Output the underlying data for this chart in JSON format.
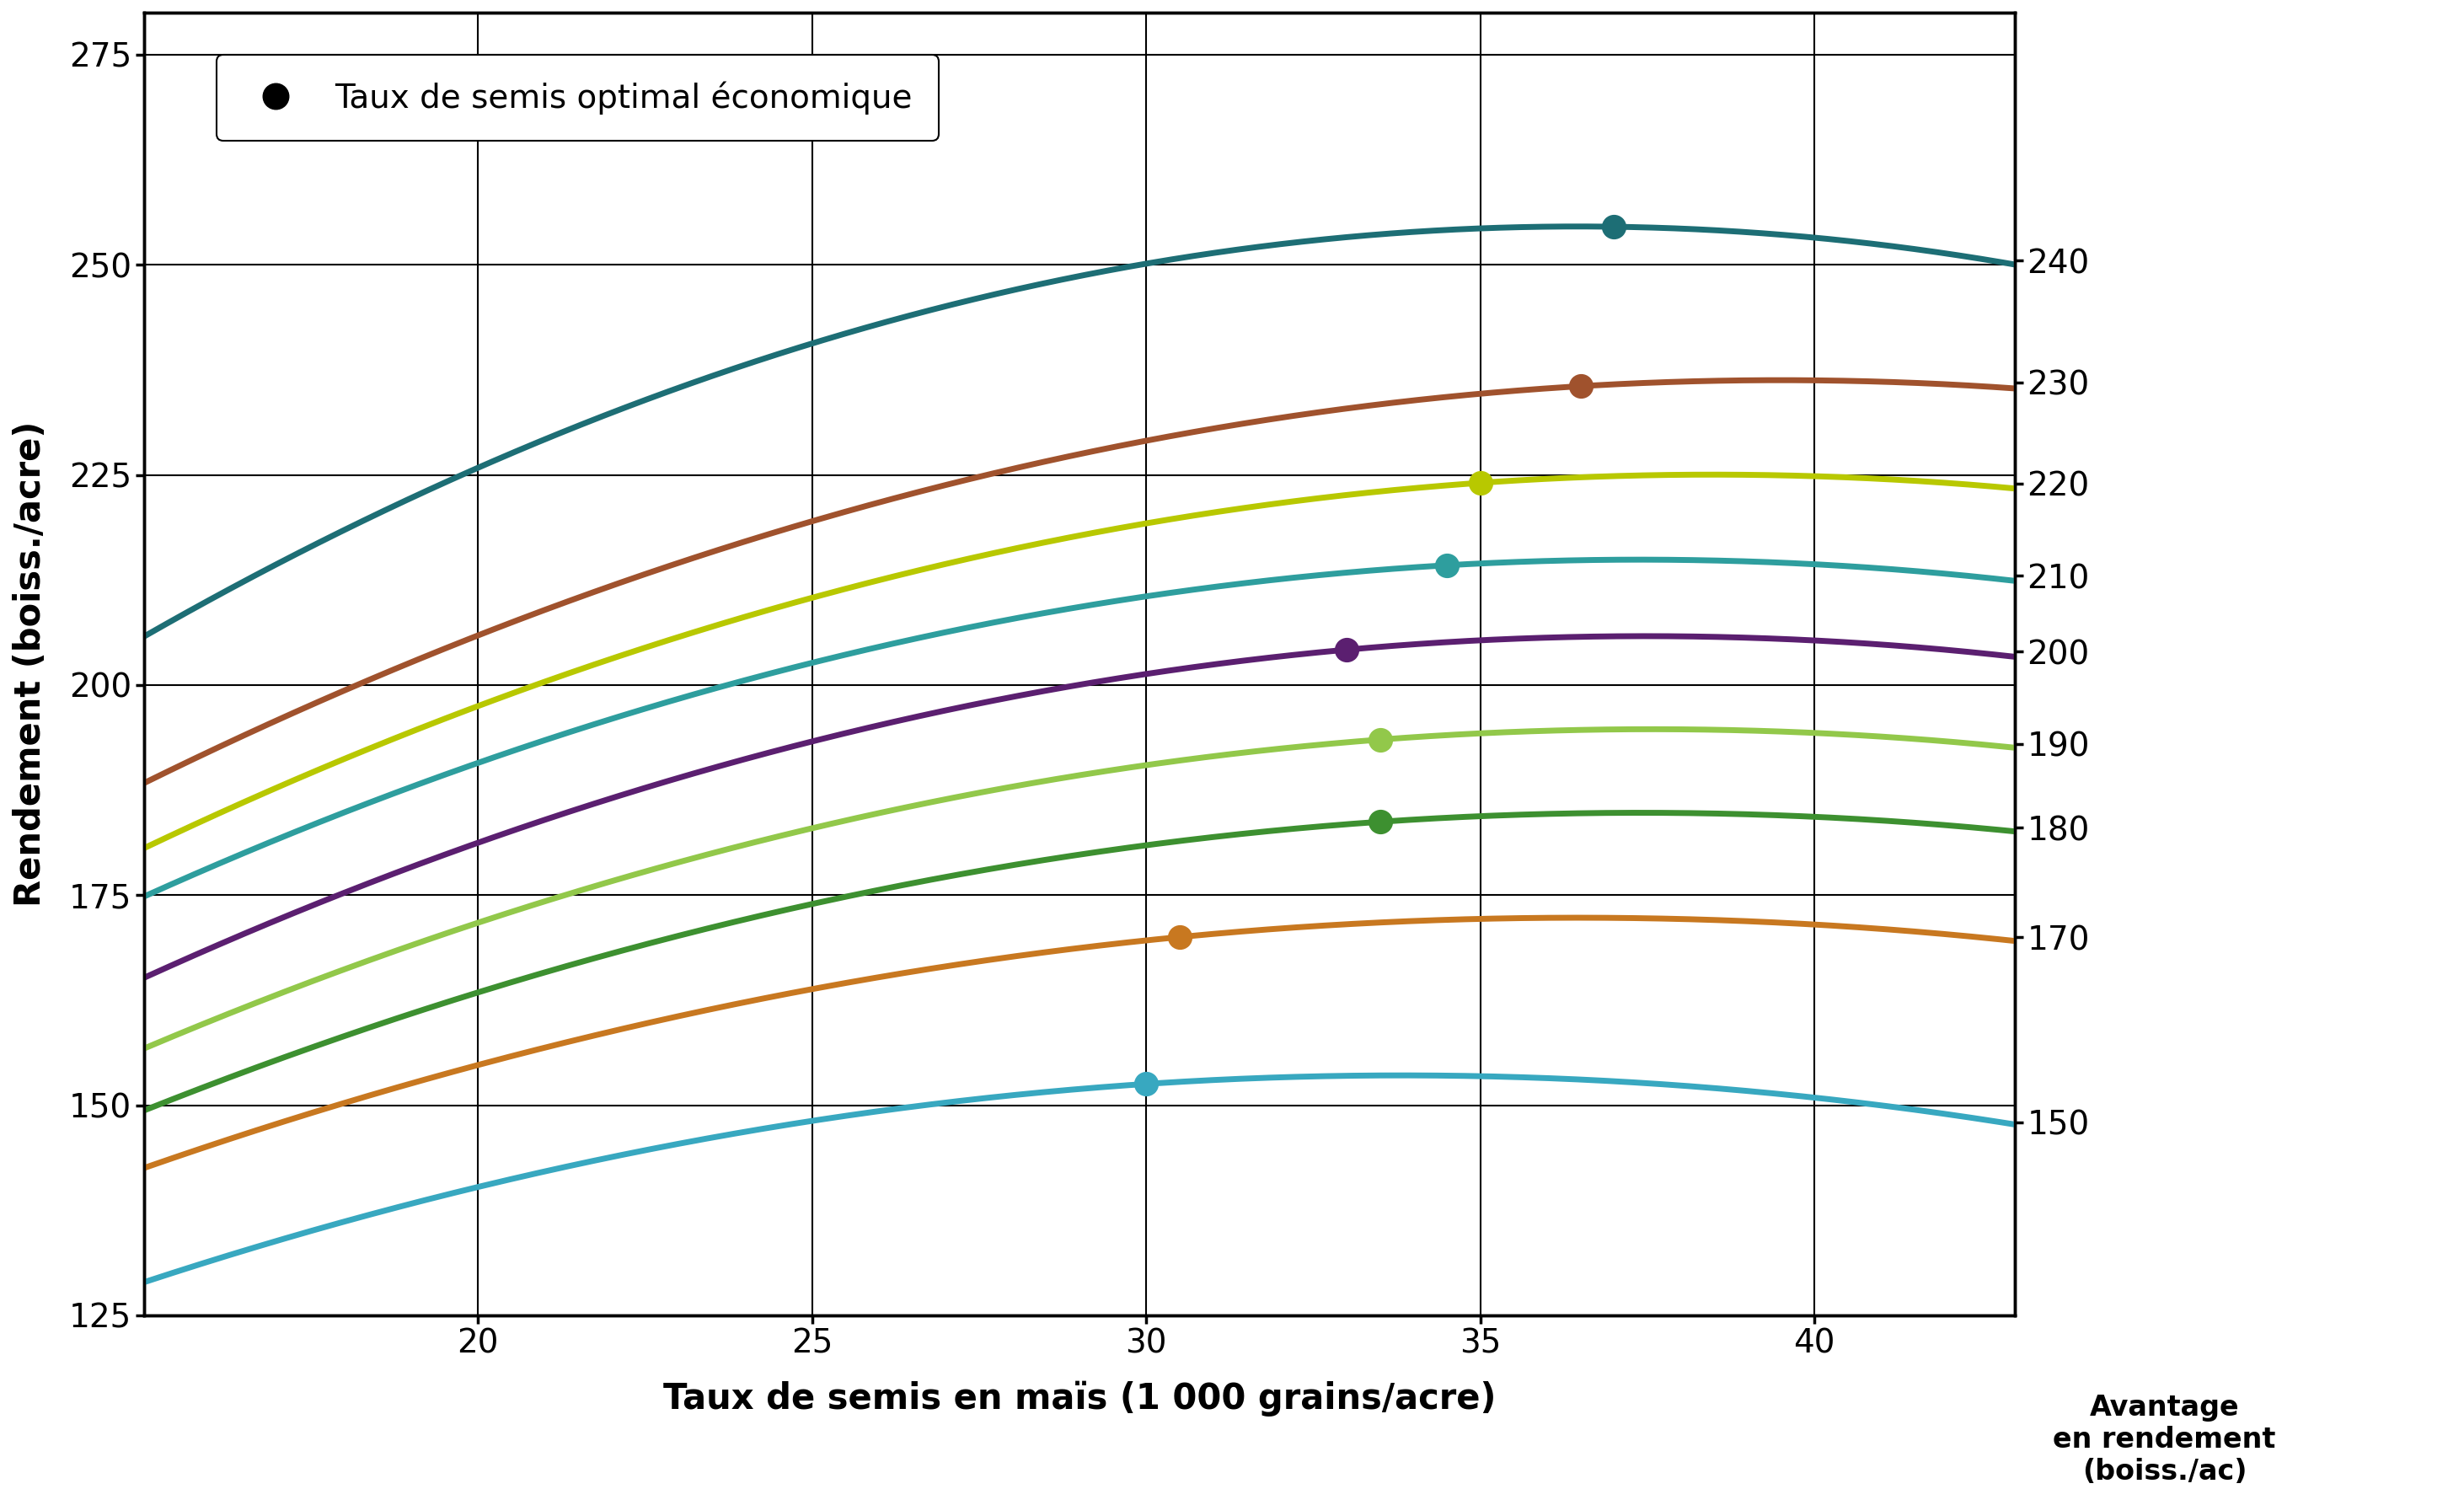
{
  "xlabel": "Taux de semis en maïs (1 000 grains/acre)",
  "ylabel": "Rendement (boiss./acre)",
  "right_label_1": "Avantage",
  "right_label_2": "en rendement",
  "right_label_3": "(boiss./ac)",
  "legend_label": "Taux de semis optimal économique",
  "xlim": [
    15,
    43
  ],
  "ylim": [
    125,
    280
  ],
  "xticks": [
    20,
    25,
    30,
    35,
    40
  ],
  "yticks_left": [
    125,
    150,
    175,
    200,
    225,
    250,
    275
  ],
  "curves": [
    {
      "color": "#1d6e75",
      "right_label": "240",
      "y15": 204,
      "y20": 228,
      "y25": 242,
      "y30": 250,
      "y35": 252,
      "y40": 252,
      "y43": 252,
      "opt_x": 37.0,
      "opt_y": 250.5
    },
    {
      "color": "#a0522d",
      "right_label": "230",
      "y15": 187,
      "y20": 208,
      "y25": 220,
      "y30": 228,
      "y35": 234,
      "y40": 236,
      "y43": 236,
      "opt_x": 36.5,
      "opt_y": 235
    },
    {
      "color": "#b8c800",
      "right_label": "220",
      "y15": 179,
      "y20": 200,
      "y25": 211,
      "y30": 218,
      "y35": 223,
      "y40": 225,
      "y43": 224,
      "opt_x": 35.0,
      "opt_y": 223
    },
    {
      "color": "#2e9e9e",
      "right_label": "210",
      "y15": 174,
      "y20": 192,
      "y25": 203,
      "y30": 210,
      "y35": 214,
      "y40": 214,
      "y43": 213,
      "opt_x": 34.5,
      "opt_y": 213
    },
    {
      "color": "#5b1f70",
      "right_label": "200",
      "y15": 164,
      "y20": 183,
      "y25": 194,
      "y30": 200,
      "y35": 205,
      "y40": 205,
      "y43": 204,
      "opt_x": 33.0,
      "opt_y": 205
    },
    {
      "color": "#92c84a",
      "right_label": "190",
      "y15": 156,
      "y20": 173,
      "y25": 183,
      "y30": 190,
      "y35": 194,
      "y40": 194,
      "y43": 193,
      "opt_x": 33.5,
      "opt_y": 194
    },
    {
      "color": "#3d9030",
      "right_label": "180",
      "y15": 149,
      "y20": 164,
      "y25": 174,
      "y30": 181,
      "y35": 184,
      "y40": 184,
      "y43": 183,
      "opt_x": 33.5,
      "opt_y": 184.5
    },
    {
      "color": "#c87820",
      "right_label": "170",
      "y15": 142,
      "y20": 156,
      "y25": 163,
      "y30": 170,
      "y35": 172,
      "y40": 171,
      "y43": 170,
      "opt_x": 30.5,
      "opt_y": 171
    },
    {
      "color": "#38a8c0",
      "right_label": "150",
      "y15": 128,
      "y20": 142,
      "y25": 148,
      "y30": 152,
      "y35": 153,
      "y40": 151,
      "y43": 148,
      "opt_x": 30.0,
      "opt_y": 151
    }
  ]
}
